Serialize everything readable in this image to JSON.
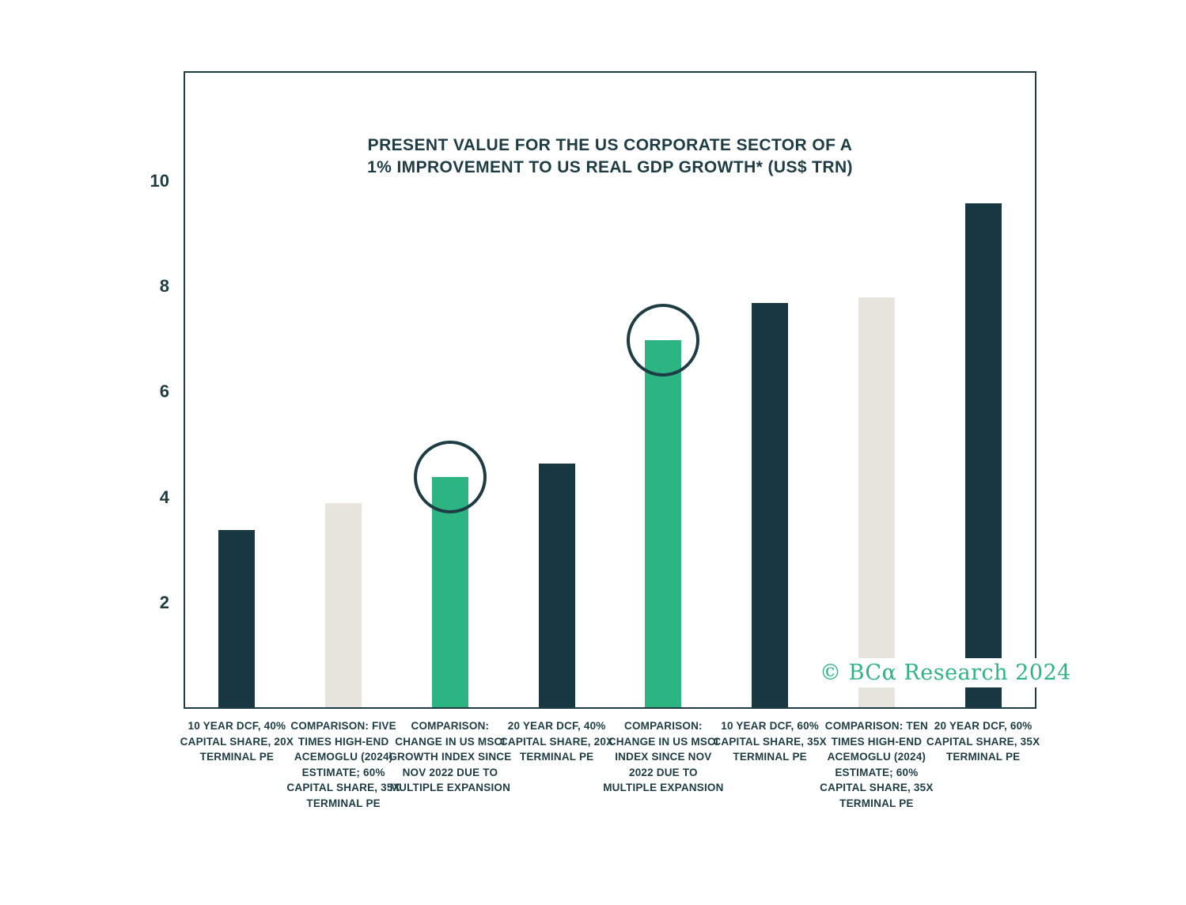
{
  "title": {
    "line1": "PRESENT VALUE FOR THE US CORPORATE SECTOR OF A",
    "line2": "1% IMPROVEMENT TO US REAL GDP GROWTH* (US$ TRN)"
  },
  "copyright": "© BCα Research 2024",
  "colors": {
    "dark": "#173840",
    "green": "#2cb482",
    "gray": "#e7e4de",
    "circle": "#1d3c43",
    "text": "#1d3c43"
  },
  "chart_data": {
    "type": "bar",
    "title": "PRESENT VALUE FOR THE US CORPORATE SECTOR OF A 1% IMPROVEMENT TO US REAL GDP GROWTH* (US$ TRN)",
    "ylabel": "US$ TRN",
    "ylim": [
      0,
      12.1
    ],
    "yticks": [
      2,
      4,
      6,
      8,
      10
    ],
    "grid": false,
    "legend": "none",
    "categories": [
      "10 YEAR DCF, 40% CAPITAL SHARE, 20X TERMINAL PE",
      "COMPARISON: FIVE TIMES HIGH-END ACEMOGLU (2024) ESTIMATE; 60% CAPITAL SHARE, 35X TERMINAL PE",
      "COMPARISON: CHANGE IN US MSCI GROWTH INDEX SINCE NOV 2022 DUE TO MULTIPLE EXPANSION",
      "20 YEAR DCF, 40% CAPITAL SHARE, 20X TERMINAL PE",
      "COMPARISON: CHANGE IN US MSCI INDEX SINCE NOV 2022 DUE TO MULTIPLE EXPANSION",
      "10 YEAR DCF, 60% CAPITAL SHARE, 35X TERMINAL PE",
      "COMPARISON: TEN TIMES HIGH-END ACEMOGLU (2024) ESTIMATE; 60% CAPITAL SHARE, 35X TERMINAL PE",
      "20 YEAR DCF, 60% CAPITAL SHARE, 35X TERMINAL PE"
    ],
    "values": [
      3.4,
      3.9,
      4.4,
      4.65,
      7.0,
      7.7,
      7.8,
      9.6
    ],
    "bar_colors": [
      "dark",
      "gray",
      "green",
      "dark",
      "green",
      "dark",
      "gray",
      "dark"
    ],
    "circled": [
      false,
      false,
      true,
      false,
      true,
      false,
      false,
      false
    ]
  }
}
